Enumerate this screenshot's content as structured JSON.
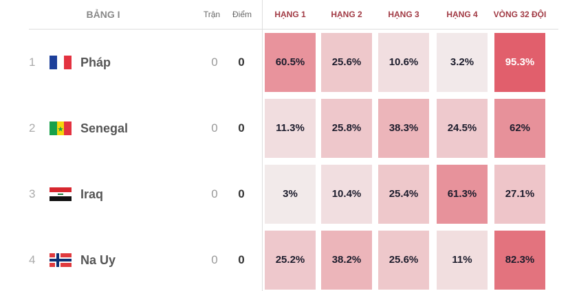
{
  "header": {
    "group": "BẢNG I",
    "played": "Trận",
    "points": "Điểm",
    "columns": [
      "HẠNG 1",
      "HẠNG 2",
      "HẠNG 3",
      "HẠNG 4",
      "VÒNG 32 ĐỘI"
    ]
  },
  "rows": [
    {
      "rank": "1",
      "name": "Pháp",
      "played": "0",
      "points": "0",
      "cells": [
        "60.5%",
        "25.6%",
        "10.6%",
        "3.2%",
        "95.3%"
      ]
    },
    {
      "rank": "2",
      "name": "Senegal",
      "played": "0",
      "points": "0",
      "cells": [
        "11.3%",
        "25.8%",
        "38.3%",
        "24.5%",
        "62%"
      ]
    },
    {
      "rank": "3",
      "name": "Iraq",
      "played": "0",
      "points": "0",
      "cells": [
        "3%",
        "10.4%",
        "25.4%",
        "61.3%",
        "27.1%"
      ]
    },
    {
      "rank": "4",
      "name": "Na Uy",
      "played": "0",
      "points": "0",
      "cells": [
        "25.2%",
        "38.2%",
        "25.6%",
        "11%",
        "82.3%"
      ]
    }
  ]
}
